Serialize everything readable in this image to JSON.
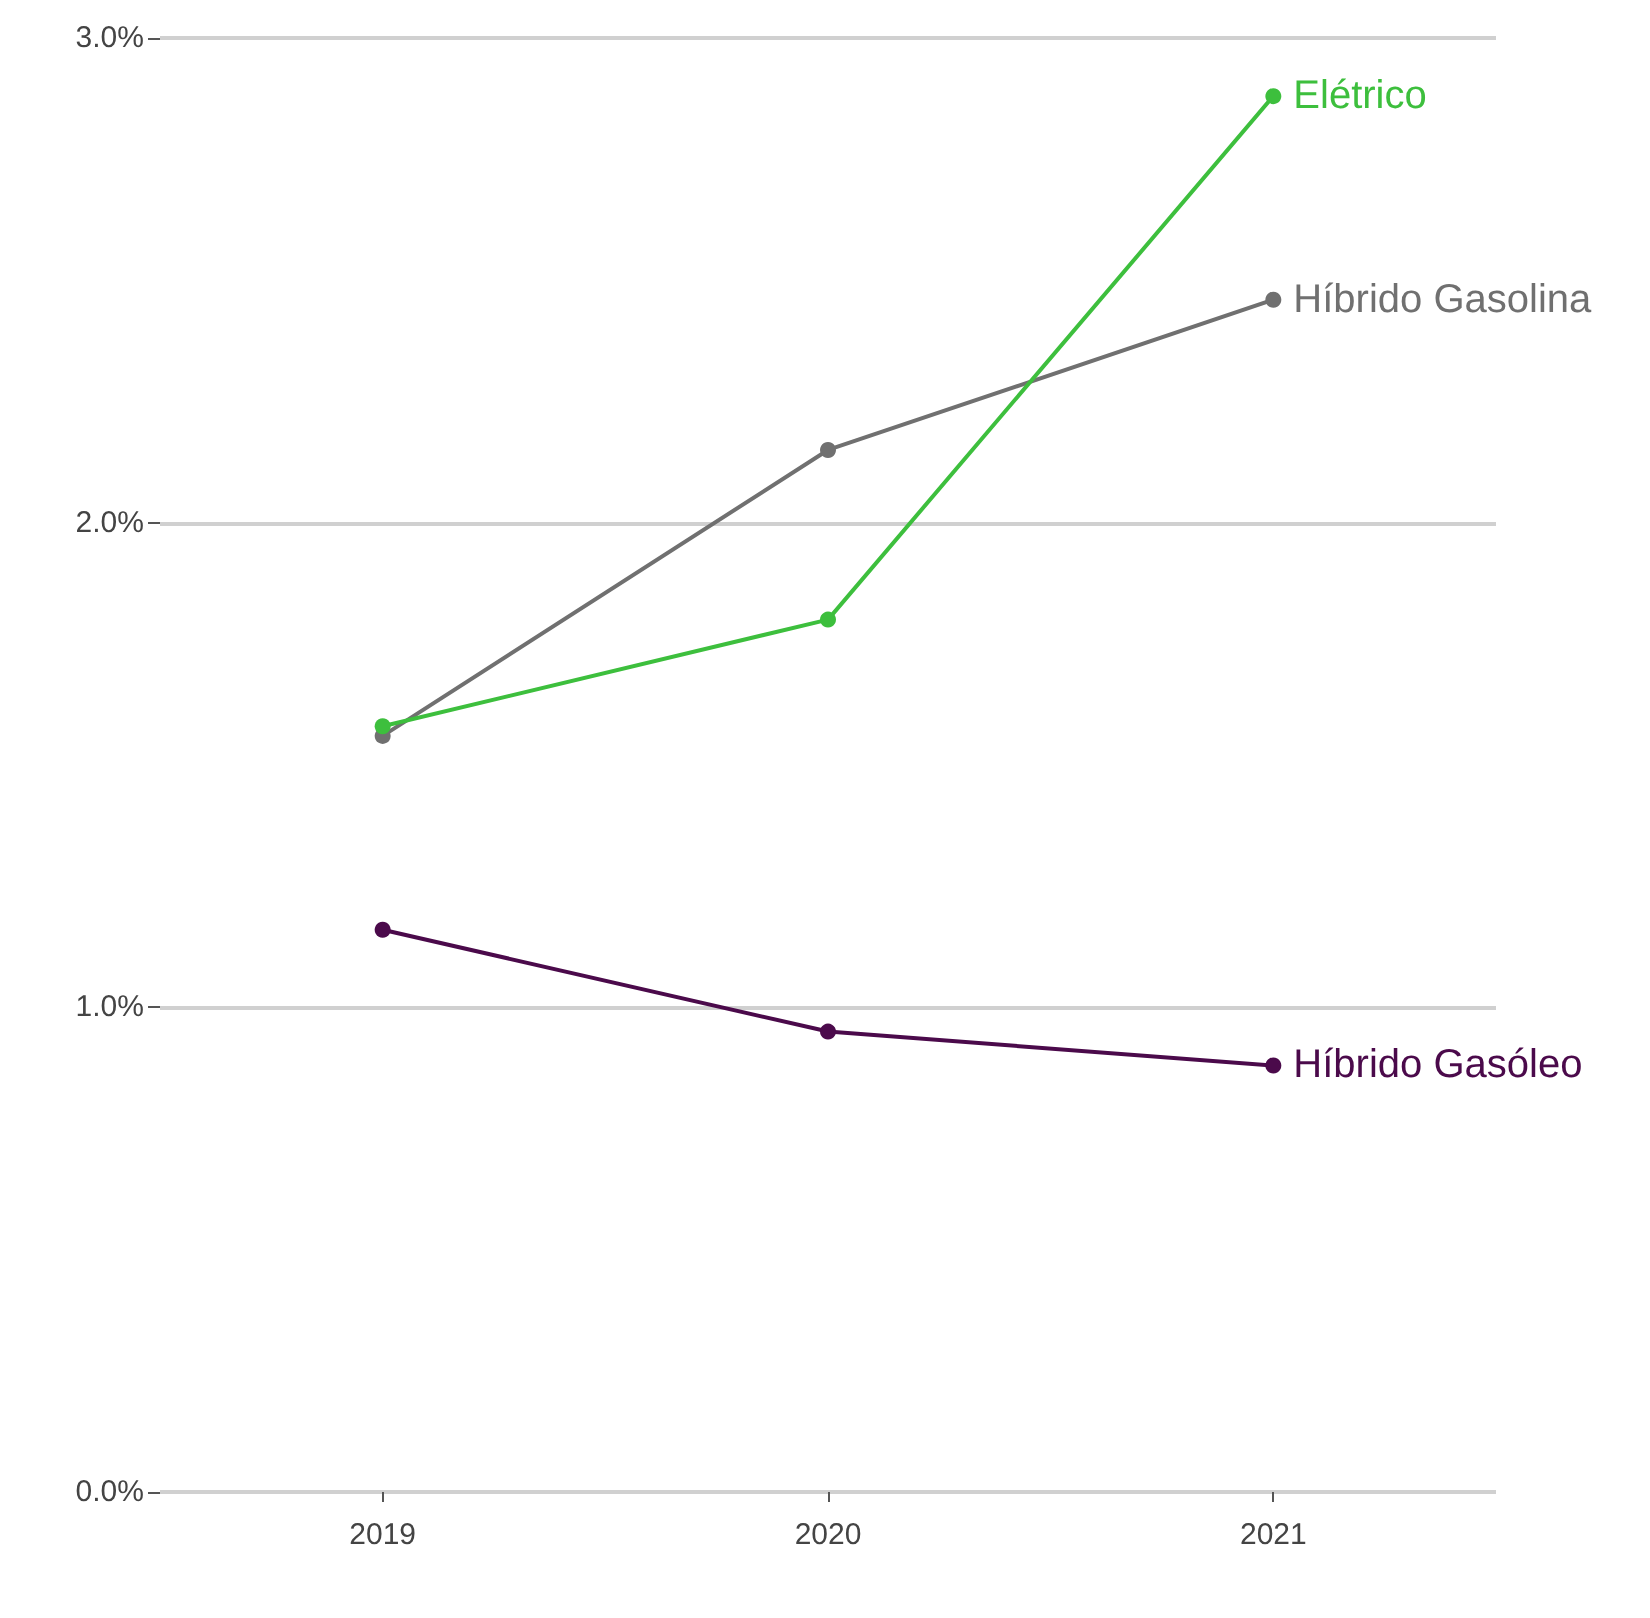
{
  "chart_data": {
    "type": "line",
    "categories": [
      "2019",
      "2020",
      "2021"
    ],
    "series": [
      {
        "name": "Elétrico",
        "color": "#3dbf3d",
        "values": [
          1.58,
          1.8,
          2.88
        ]
      },
      {
        "name": "Híbrido Gasolina",
        "color": "#707070",
        "values": [
          1.56,
          2.15,
          2.46
        ]
      },
      {
        "name": "Híbrido Gasóleo",
        "color": "#4b0a4b",
        "values": [
          1.16,
          0.95,
          0.88
        ]
      }
    ],
    "ylim": [
      0,
      3
    ],
    "yticks": [
      {
        "value": 0,
        "label": "0.0%"
      },
      {
        "value": 1,
        "label": "1.0%"
      },
      {
        "value": 2,
        "label": "2.0%"
      },
      {
        "value": 3,
        "label": "3.0%"
      }
    ],
    "grid": "y",
    "legend": false,
    "marker": "circle",
    "line_style": "solid"
  }
}
